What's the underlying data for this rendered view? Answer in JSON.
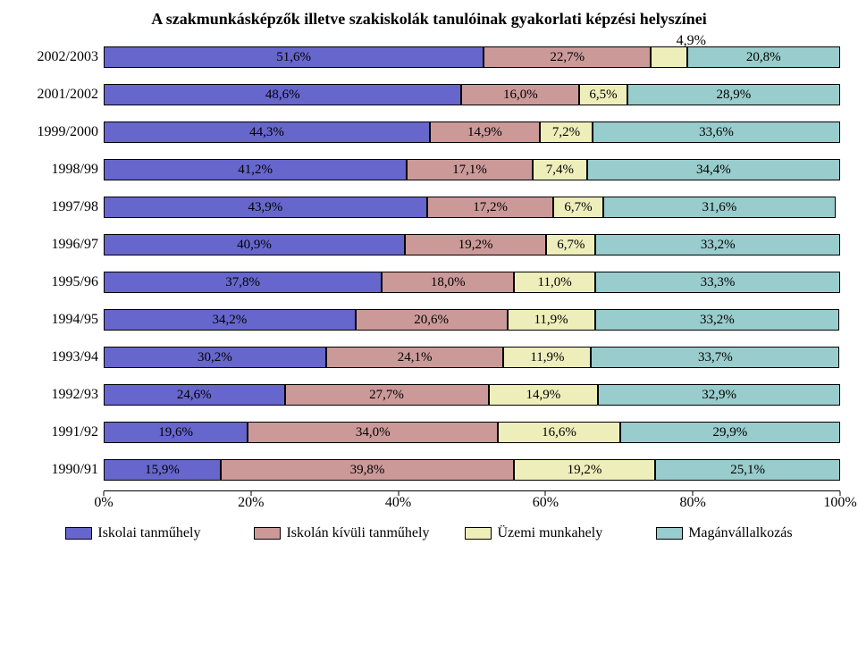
{
  "chart": {
    "type": "stacked-bar-horizontal",
    "title": "A szakmunkásképzők illetve szakiskolák tanulóinak gyakorlati képzési helyszínei",
    "title_fontsize": 18,
    "background_color": "#ffffff",
    "callout_label": "4,9%",
    "series": [
      {
        "name": "Iskolai tanműhely",
        "color": "#6666cc"
      },
      {
        "name": "Iskolán kívüli tanműhely",
        "color": "#cc9999"
      },
      {
        "name": "Üzemi munkahely",
        "color": "#eeeebb"
      },
      {
        "name": "Magánvállalkozás",
        "color": "#99cccc"
      }
    ],
    "rows": [
      {
        "label": "2002/2003",
        "values": [
          51.6,
          22.7,
          4.9,
          20.8
        ],
        "show_label_for_index": [
          0,
          1,
          3
        ]
      },
      {
        "label": "2001/2002",
        "values": [
          48.6,
          16.0,
          6.5,
          28.9
        ],
        "show_label_for_index": [
          0,
          1,
          2,
          3
        ]
      },
      {
        "label": "1999/2000",
        "values": [
          44.3,
          14.9,
          7.2,
          33.6
        ],
        "show_label_for_index": [
          0,
          1,
          2,
          3
        ]
      },
      {
        "label": "1998/99",
        "values": [
          41.2,
          17.1,
          7.4,
          34.4
        ],
        "show_label_for_index": [
          0,
          1,
          2,
          3
        ]
      },
      {
        "label": "1997/98",
        "values": [
          43.9,
          17.2,
          6.7,
          31.6
        ],
        "show_label_for_index": [
          0,
          1,
          2,
          3
        ]
      },
      {
        "label": "1996/97",
        "values": [
          40.9,
          19.2,
          6.7,
          33.2
        ],
        "show_label_for_index": [
          0,
          1,
          2,
          3
        ]
      },
      {
        "label": "1995/96",
        "values": [
          37.8,
          18.0,
          11.0,
          33.3
        ],
        "show_label_for_index": [
          0,
          1,
          2,
          3
        ]
      },
      {
        "label": "1994/95",
        "values": [
          34.2,
          20.6,
          11.9,
          33.2
        ],
        "show_label_for_index": [
          0,
          1,
          2,
          3
        ]
      },
      {
        "label": "1993/94",
        "values": [
          30.2,
          24.1,
          11.9,
          33.7
        ],
        "show_label_for_index": [
          0,
          1,
          2,
          3
        ]
      },
      {
        "label": "1992/93",
        "values": [
          24.6,
          27.7,
          14.9,
          32.9
        ],
        "show_label_for_index": [
          0,
          1,
          2,
          3
        ]
      },
      {
        "label": "1991/92",
        "values": [
          19.6,
          34.0,
          16.6,
          29.9
        ],
        "show_label_for_index": [
          0,
          1,
          2,
          3
        ]
      },
      {
        "label": "1990/91",
        "values": [
          15.9,
          39.8,
          19.2,
          25.1
        ],
        "show_label_for_index": [
          0,
          1,
          2,
          3
        ]
      }
    ],
    "xaxis": {
      "min": 0,
      "max": 100,
      "step": 20,
      "ticks": [
        "0%",
        "20%",
        "40%",
        "60%",
        "80%",
        "100%"
      ]
    },
    "label_fontsize": 16,
    "value_fontsize": 15
  }
}
